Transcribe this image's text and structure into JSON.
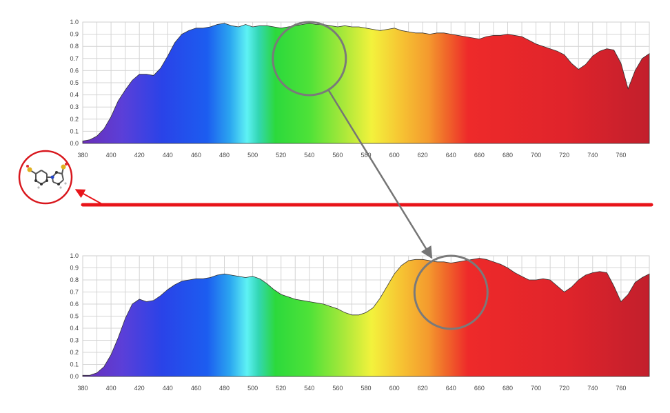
{
  "chart_data": [
    {
      "type": "area",
      "title": "",
      "xlabel": "",
      "ylabel": "",
      "xlim": [
        380,
        780
      ],
      "ylim": [
        0,
        1.0
      ],
      "grid": true,
      "x_ticks": [
        "380",
        "400",
        "420",
        "440",
        "460",
        "480",
        "500",
        "520",
        "540",
        "560",
        "580",
        "600",
        "620",
        "640",
        "660",
        "680",
        "700",
        "720",
        "740",
        "760"
      ],
      "y_ticks": [
        "1.0",
        "0.9",
        "0.8",
        "0.7",
        "0.6",
        "0.5",
        "0.4",
        "0.3",
        "0.2",
        "0.1",
        "0.0"
      ],
      "fill": "visible-spectrum gradient",
      "series": [
        {
          "x": [
            380,
            385,
            390,
            395,
            400,
            405,
            410,
            415,
            420,
            425,
            430,
            435,
            440,
            445,
            450,
            455,
            460,
            465,
            470,
            475,
            480,
            485,
            490,
            495,
            500,
            505,
            510,
            515,
            520,
            525,
            530,
            535,
            540,
            545,
            550,
            555,
            560,
            565,
            570,
            575,
            580,
            585,
            590,
            595,
            600,
            605,
            610,
            615,
            620,
            625,
            630,
            635,
            640,
            645,
            650,
            655,
            660,
            665,
            670,
            675,
            680,
            685,
            690,
            695,
            700,
            705,
            710,
            715,
            720,
            725,
            730,
            735,
            740,
            745,
            750,
            755,
            760,
            765,
            770,
            775,
            780
          ],
          "y": [
            0.02,
            0.03,
            0.06,
            0.12,
            0.22,
            0.35,
            0.44,
            0.52,
            0.57,
            0.57,
            0.56,
            0.62,
            0.72,
            0.83,
            0.9,
            0.93,
            0.95,
            0.95,
            0.96,
            0.98,
            0.99,
            0.97,
            0.96,
            0.98,
            0.96,
            0.97,
            0.97,
            0.96,
            0.95,
            0.96,
            0.97,
            0.98,
            0.99,
            0.98,
            0.98,
            0.97,
            0.96,
            0.97,
            0.96,
            0.96,
            0.95,
            0.94,
            0.93,
            0.94,
            0.95,
            0.93,
            0.92,
            0.91,
            0.91,
            0.9,
            0.91,
            0.91,
            0.9,
            0.89,
            0.88,
            0.87,
            0.86,
            0.88,
            0.89,
            0.89,
            0.9,
            0.89,
            0.88,
            0.85,
            0.82,
            0.8,
            0.78,
            0.76,
            0.73,
            0.66,
            0.61,
            0.65,
            0.72,
            0.76,
            0.78,
            0.77,
            0.66,
            0.45,
            0.6,
            0.7,
            0.74
          ]
        }
      ]
    },
    {
      "type": "area",
      "title": "",
      "xlabel": "",
      "ylabel": "",
      "xlim": [
        380,
        780
      ],
      "ylim": [
        0,
        1.0
      ],
      "grid": true,
      "x_ticks": [
        "380",
        "400",
        "420",
        "440",
        "460",
        "480",
        "500",
        "520",
        "540",
        "560",
        "580",
        "600",
        "620",
        "640",
        "660",
        "680",
        "700",
        "720",
        "740",
        "760"
      ],
      "y_ticks": [
        "1.0",
        "0.9",
        "0.8",
        "0.7",
        "0.6",
        "0.5",
        "0.4",
        "0.3",
        "0.2",
        "0.1",
        "0.0"
      ],
      "fill": "visible-spectrum gradient",
      "series": [
        {
          "x": [
            380,
            385,
            390,
            395,
            400,
            405,
            410,
            415,
            420,
            425,
            430,
            435,
            440,
            445,
            450,
            455,
            460,
            465,
            470,
            475,
            480,
            485,
            490,
            495,
            500,
            505,
            510,
            515,
            520,
            525,
            530,
            535,
            540,
            545,
            550,
            555,
            560,
            565,
            570,
            575,
            580,
            585,
            590,
            595,
            600,
            605,
            610,
            615,
            620,
            625,
            630,
            635,
            640,
            645,
            650,
            655,
            660,
            665,
            670,
            675,
            680,
            685,
            690,
            695,
            700,
            705,
            710,
            715,
            720,
            725,
            730,
            735,
            740,
            745,
            750,
            755,
            760,
            765,
            770,
            775,
            780
          ],
          "y": [
            0.01,
            0.01,
            0.03,
            0.08,
            0.18,
            0.32,
            0.48,
            0.6,
            0.64,
            0.62,
            0.63,
            0.67,
            0.72,
            0.76,
            0.79,
            0.8,
            0.81,
            0.81,
            0.82,
            0.84,
            0.85,
            0.84,
            0.83,
            0.82,
            0.83,
            0.81,
            0.77,
            0.72,
            0.68,
            0.66,
            0.64,
            0.63,
            0.62,
            0.61,
            0.6,
            0.58,
            0.56,
            0.53,
            0.51,
            0.51,
            0.53,
            0.57,
            0.65,
            0.75,
            0.85,
            0.92,
            0.96,
            0.97,
            0.97,
            0.96,
            0.95,
            0.95,
            0.94,
            0.95,
            0.96,
            0.97,
            0.98,
            0.97,
            0.95,
            0.93,
            0.9,
            0.86,
            0.83,
            0.8,
            0.8,
            0.81,
            0.8,
            0.75,
            0.7,
            0.74,
            0.8,
            0.84,
            0.86,
            0.87,
            0.86,
            0.75,
            0.62,
            0.68,
            0.78,
            0.82,
            0.85
          ]
        }
      ]
    }
  ],
  "overlays": {
    "highlight_top_nm": 540,
    "highlight_bottom_nm": 640,
    "line_color": "#e8141a",
    "arrow_color": "#757575",
    "circle_color": "#7a7a7a",
    "molecule_icon": "molecule-structure-icon"
  }
}
